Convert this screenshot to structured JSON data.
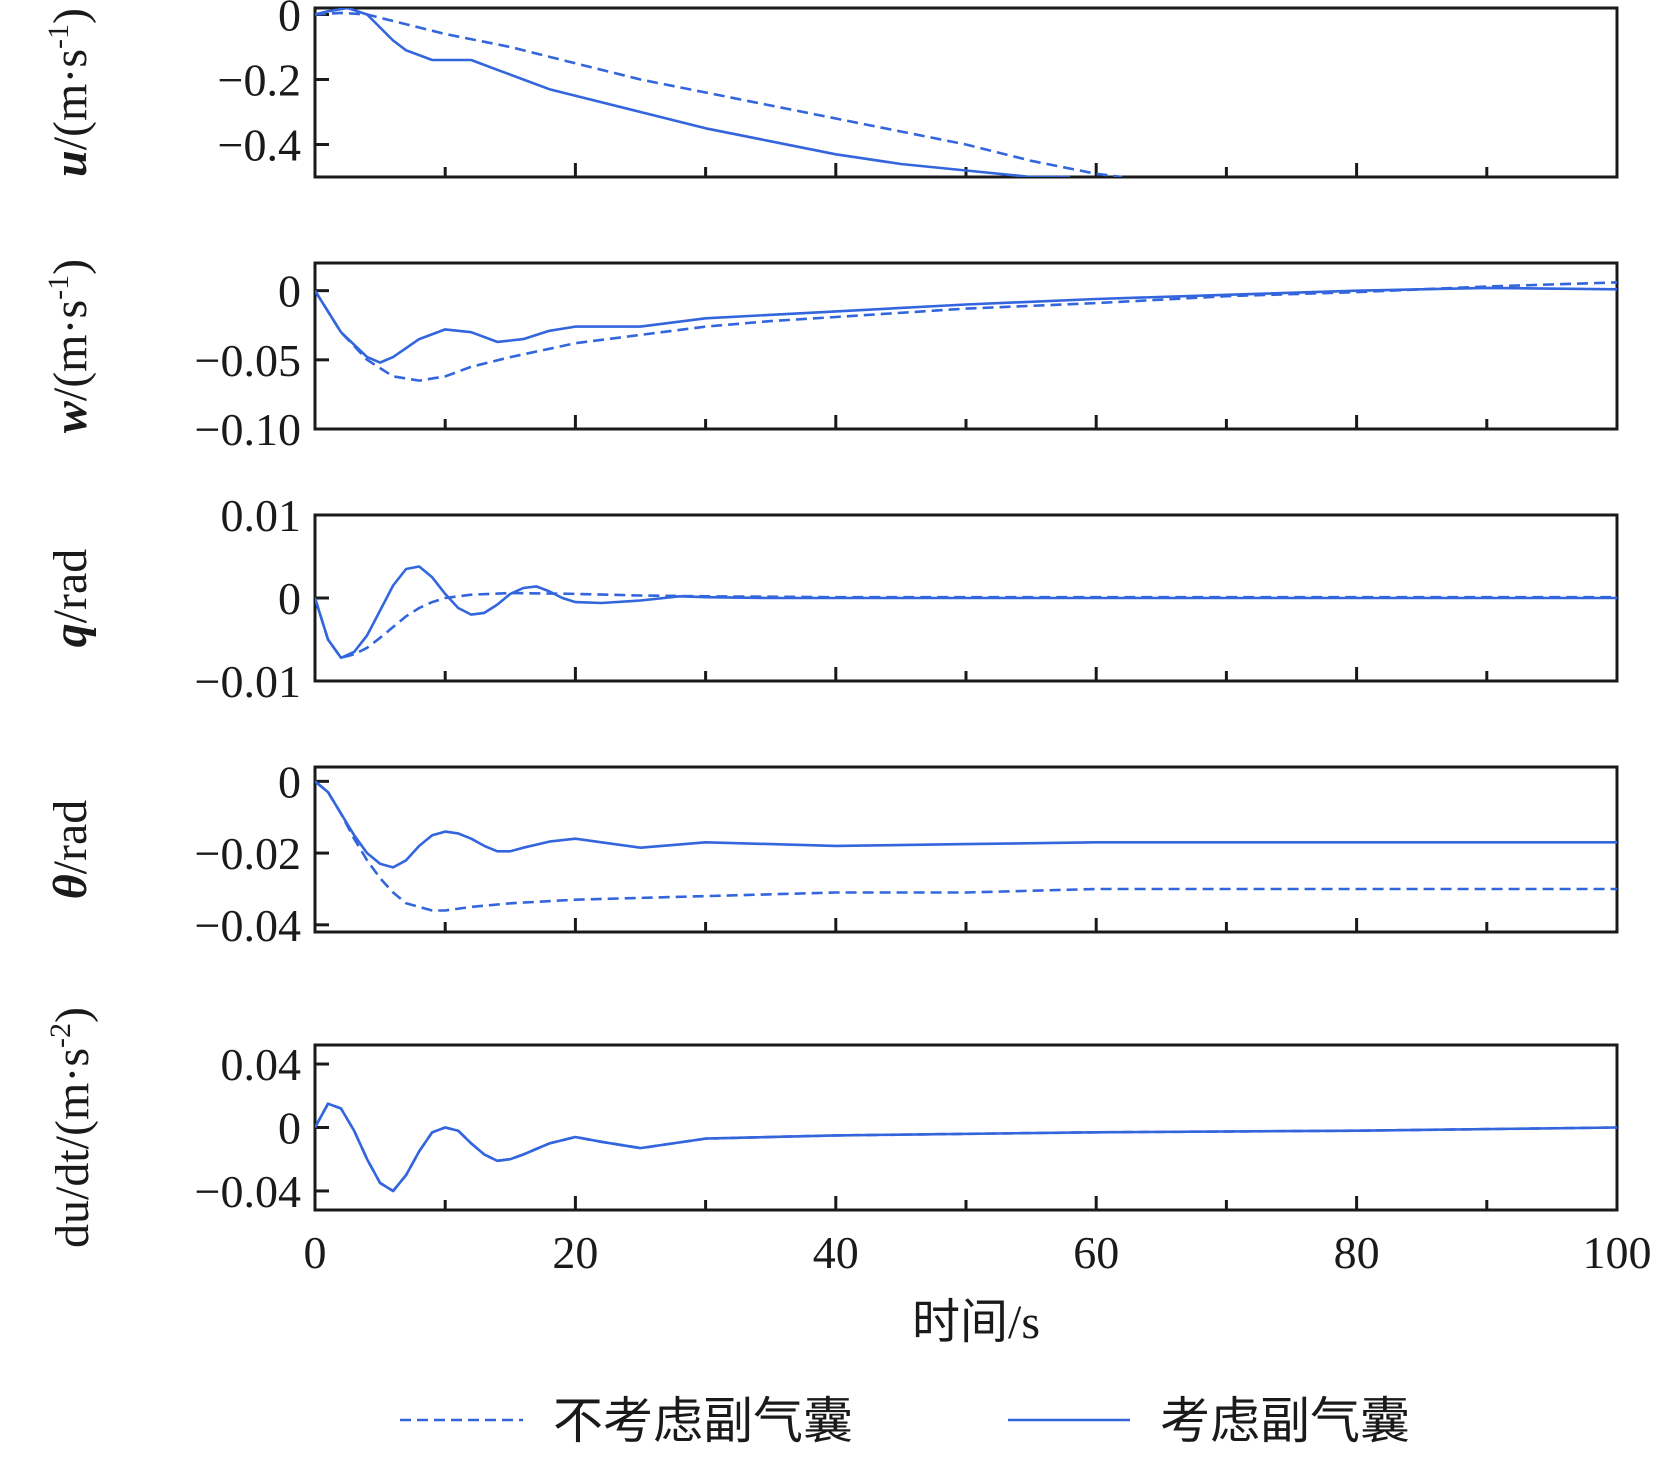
{
  "chart_data": [
    {
      "type": "line",
      "ylabel": "u/(m·s-1)",
      "ylabel_parts": {
        "var": "u",
        "unit_pre": "/(m·s",
        "sup": "-1",
        "unit_post": ")"
      },
      "ylim": [
        -0.5,
        0.02
      ],
      "yticks": [
        {
          "value": 0,
          "label": "0"
        },
        {
          "value": -0.2,
          "label": "−0.2"
        },
        {
          "value": -0.4,
          "label": "−0.4"
        }
      ],
      "series": [
        {
          "name": "不考虑副气囊",
          "style": "dashed",
          "x": [
            0,
            2,
            4,
            6,
            8,
            10,
            15,
            20,
            25,
            30,
            35,
            40,
            45,
            50,
            55,
            60,
            62
          ],
          "y": [
            0.0,
            0.005,
            0.0,
            -0.02,
            -0.04,
            -0.06,
            -0.1,
            -0.15,
            -0.2,
            -0.24,
            -0.28,
            -0.32,
            -0.36,
            -0.4,
            -0.45,
            -0.49,
            -0.5
          ]
        },
        {
          "name": "考虑副气囊",
          "style": "solid",
          "x": [
            0,
            1,
            2.5,
            4,
            5,
            6,
            7,
            9,
            12,
            14,
            16,
            18,
            20,
            25,
            30,
            35,
            40,
            45,
            50,
            55,
            58
          ],
          "y": [
            0.0,
            0.01,
            0.02,
            0.0,
            -0.04,
            -0.08,
            -0.11,
            -0.14,
            -0.14,
            -0.17,
            -0.2,
            -0.23,
            -0.25,
            -0.3,
            -0.35,
            -0.39,
            -0.43,
            -0.46,
            -0.48,
            -0.5,
            -0.5
          ]
        }
      ]
    },
    {
      "type": "line",
      "ylabel": "w/(m·s-1)",
      "ylabel_parts": {
        "var": "w",
        "unit_pre": "/(m·s",
        "sup": "-1",
        "unit_post": ")"
      },
      "ylim": [
        -0.1,
        0.02
      ],
      "yticks": [
        {
          "value": 0,
          "label": "0"
        },
        {
          "value": -0.05,
          "label": "−0.05"
        },
        {
          "value": -0.1,
          "label": "−0.10"
        }
      ],
      "series": [
        {
          "name": "不考虑副气囊",
          "style": "dashed",
          "x": [
            0,
            2,
            4,
            6,
            8,
            10,
            12,
            15,
            18,
            20,
            25,
            30,
            35,
            40,
            50,
            60,
            70,
            80,
            90,
            100
          ],
          "y": [
            0,
            -0.03,
            -0.05,
            -0.062,
            -0.065,
            -0.062,
            -0.055,
            -0.048,
            -0.042,
            -0.038,
            -0.032,
            -0.026,
            -0.022,
            -0.019,
            -0.013,
            -0.009,
            -0.004,
            -0.001,
            0.003,
            0.006
          ]
        },
        {
          "name": "考虑副气囊",
          "style": "solid",
          "x": [
            0,
            2,
            4,
            5,
            6,
            8,
            10,
            12,
            14,
            16,
            18,
            20,
            25,
            30,
            40,
            50,
            60,
            70,
            80,
            90,
            100
          ],
          "y": [
            0,
            -0.03,
            -0.048,
            -0.052,
            -0.048,
            -0.035,
            -0.028,
            -0.03,
            -0.037,
            -0.035,
            -0.029,
            -0.026,
            -0.026,
            -0.02,
            -0.015,
            -0.01,
            -0.006,
            -0.003,
            0.0,
            0.002,
            0.001
          ]
        }
      ]
    },
    {
      "type": "line",
      "ylabel": "q/rad",
      "ylabel_parts": {
        "var": "q",
        "unit_pre": "/rad",
        "sup": "",
        "unit_post": ""
      },
      "ylim": [
        -0.01,
        0.01
      ],
      "yticks": [
        {
          "value": 0.01,
          "label": "0.01"
        },
        {
          "value": 0,
          "label": "0"
        },
        {
          "value": -0.01,
          "label": "−0.01"
        }
      ],
      "series": [
        {
          "name": "不考虑副气囊",
          "style": "dashed",
          "x": [
            0,
            1,
            2,
            3,
            4,
            5,
            6,
            7,
            8,
            9,
            10,
            12,
            15,
            20,
            25,
            30,
            40,
            100
          ],
          "y": [
            0,
            -0.005,
            -0.0072,
            -0.0068,
            -0.006,
            -0.0048,
            -0.0035,
            -0.0022,
            -0.0012,
            -0.0005,
            0.0,
            0.0004,
            0.0006,
            0.0005,
            0.0003,
            0.0002,
            0.0001,
            0.0001
          ]
        },
        {
          "name": "考虑副气囊",
          "style": "solid",
          "x": [
            0,
            1,
            2,
            3,
            4,
            5,
            6,
            7,
            8,
            9,
            10,
            11,
            12,
            13,
            14,
            15,
            16,
            17,
            18,
            19,
            20,
            22,
            25,
            28,
            30,
            35,
            40,
            100
          ],
          "y": [
            0,
            -0.005,
            -0.0072,
            -0.0065,
            -0.0045,
            -0.0015,
            0.0015,
            0.0035,
            0.0038,
            0.0025,
            0.0005,
            -0.0012,
            -0.002,
            -0.0018,
            -0.0008,
            0.0005,
            0.0012,
            0.0014,
            0.0008,
            0.0,
            -0.0005,
            -0.0006,
            -0.0003,
            0.0002,
            0.0001,
            0.0,
            0.0,
            0.0
          ]
        }
      ]
    },
    {
      "type": "line",
      "ylabel": "θ/rad",
      "ylabel_parts": {
        "var": "θ",
        "unit_pre": "/rad",
        "sup": "",
        "unit_post": ""
      },
      "ylim": [
        -0.042,
        0.004
      ],
      "yticks": [
        {
          "value": 0,
          "label": "0"
        },
        {
          "value": -0.02,
          "label": "−0.02"
        },
        {
          "value": -0.04,
          "label": "−0.04"
        }
      ],
      "series": [
        {
          "name": "不考虑副气囊",
          "style": "dashed",
          "x": [
            0,
            1,
            2,
            3,
            4,
            5,
            6,
            7,
            8,
            9,
            10,
            12,
            15,
            20,
            30,
            40,
            50,
            60,
            70,
            80,
            100
          ],
          "y": [
            0,
            -0.003,
            -0.009,
            -0.016,
            -0.022,
            -0.027,
            -0.031,
            -0.034,
            -0.035,
            -0.036,
            -0.036,
            -0.035,
            -0.034,
            -0.033,
            -0.032,
            -0.031,
            -0.031,
            -0.03,
            -0.03,
            -0.03,
            -0.03
          ]
        },
        {
          "name": "考虑副气囊",
          "style": "solid",
          "x": [
            0,
            1,
            2,
            3,
            4,
            5,
            6,
            7,
            8,
            9,
            10,
            11,
            12,
            13,
            14,
            15,
            16,
            18,
            20,
            22,
            25,
            30,
            40,
            50,
            60,
            80,
            100
          ],
          "y": [
            0,
            -0.003,
            -0.009,
            -0.015,
            -0.02,
            -0.023,
            -0.024,
            -0.022,
            -0.018,
            -0.015,
            -0.014,
            -0.0145,
            -0.016,
            -0.018,
            -0.0195,
            -0.0195,
            -0.0185,
            -0.0168,
            -0.016,
            -0.017,
            -0.0185,
            -0.017,
            -0.018,
            -0.0175,
            -0.017,
            -0.017,
            -0.017
          ]
        }
      ]
    },
    {
      "type": "line",
      "ylabel": "du/dt/(m·s-2)",
      "ylabel_parts": {
        "num": "du",
        "den": "dt",
        "unit_pre": "/(m·s",
        "sup": "-2",
        "unit_post": ")"
      },
      "ylim": [
        -0.052,
        0.052
      ],
      "yticks": [
        {
          "value": 0.04,
          "label": "0.04"
        },
        {
          "value": 0,
          "label": "0"
        },
        {
          "value": -0.04,
          "label": "−0.04"
        }
      ],
      "series": [
        {
          "name": "不考虑副气囊",
          "style": "dashed",
          "x": [
            0,
            1,
            2,
            3,
            4,
            5,
            6,
            7,
            8,
            9,
            10,
            11,
            12,
            13,
            14,
            15,
            16,
            18,
            20,
            22,
            25,
            30,
            40,
            60,
            80,
            100
          ],
          "y": [
            0,
            0.015,
            0.012,
            -0.002,
            -0.02,
            -0.035,
            -0.04,
            -0.03,
            -0.015,
            -0.003,
            0.0,
            -0.002,
            -0.01,
            -0.017,
            -0.021,
            -0.02,
            -0.017,
            -0.01,
            -0.006,
            -0.009,
            -0.013,
            -0.007,
            -0.005,
            -0.003,
            -0.002,
            0.0
          ]
        },
        {
          "name": "考虑副气囊",
          "style": "solid",
          "x": [
            0,
            1,
            2,
            3,
            4,
            5,
            6,
            7,
            8,
            9,
            10,
            11,
            12,
            13,
            14,
            15,
            16,
            18,
            20,
            22,
            25,
            30,
            40,
            60,
            80,
            100
          ],
          "y": [
            0,
            0.015,
            0.012,
            -0.002,
            -0.02,
            -0.035,
            -0.04,
            -0.03,
            -0.015,
            -0.003,
            0.0,
            -0.002,
            -0.01,
            -0.017,
            -0.021,
            -0.02,
            -0.017,
            -0.01,
            -0.006,
            -0.009,
            -0.013,
            -0.007,
            -0.005,
            -0.003,
            -0.002,
            0.0
          ]
        }
      ]
    }
  ],
  "x_axis": {
    "xlim": [
      0,
      100
    ],
    "tick_labels": [
      "0",
      "20",
      "40",
      "60",
      "80",
      "100"
    ],
    "title": "时间/s"
  },
  "legend": {
    "placement": "bottom-center",
    "items": [
      {
        "label": "不考虑副气囊",
        "style": "dashed"
      },
      {
        "label": "考虑副气囊",
        "style": "solid"
      }
    ]
  },
  "colors": {
    "line": "#3366dd",
    "axes": "#1a1a1a"
  }
}
